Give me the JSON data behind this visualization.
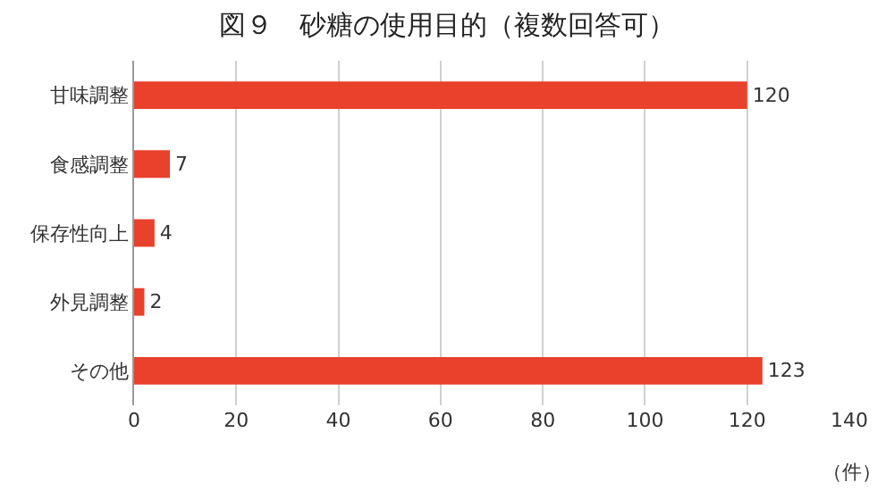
{
  "chart_data": {
    "type": "bar",
    "orientation": "horizontal",
    "title": "図９　砂糖の使用目的（複数回答可）",
    "xlabel": "（件）",
    "categories": [
      "甘味調整",
      "食感調整",
      "保存性向上",
      "外見調整",
      "その他"
    ],
    "values": [
      120,
      7,
      4,
      2,
      123
    ],
    "color": "#e8412c",
    "xlim": [
      0,
      140
    ],
    "xticks": [
      0,
      20,
      40,
      60,
      80,
      100,
      120,
      140
    ],
    "grid": "x",
    "data_labels": true
  }
}
